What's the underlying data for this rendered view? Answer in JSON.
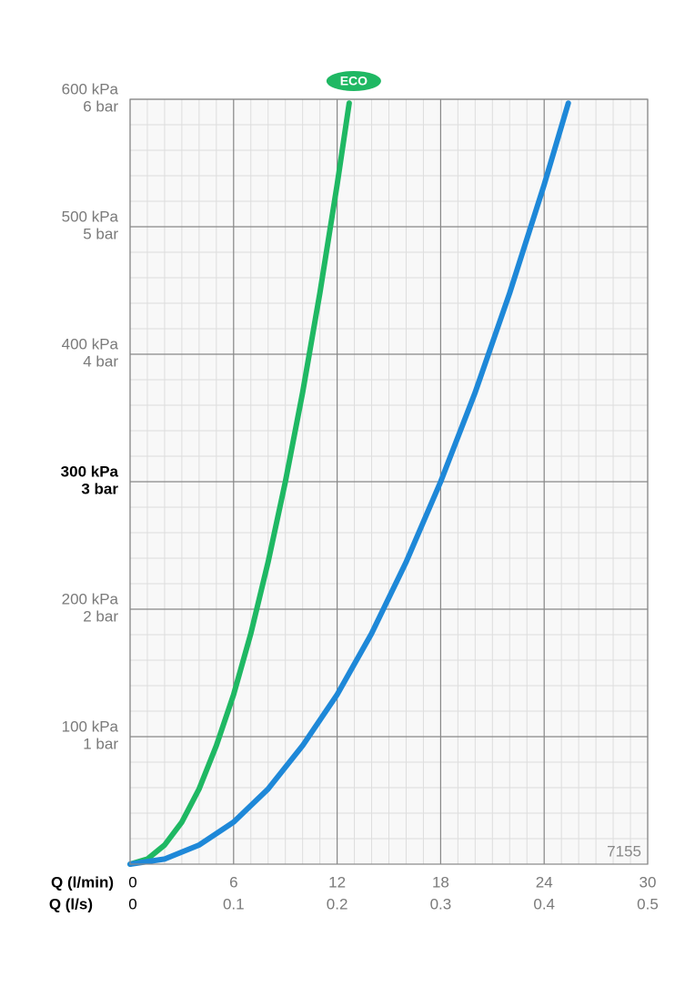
{
  "chart_data": {
    "type": "line",
    "x_label": "Q (l/min)",
    "x2_label": "Q (l/s)",
    "xlim": [
      0,
      30
    ],
    "xticks": [
      0,
      6,
      12,
      18,
      24,
      30
    ],
    "x2lim": [
      0,
      0.5
    ],
    "x2ticks": [
      0,
      0.1,
      0.2,
      0.3,
      0.4,
      0.5
    ],
    "ylim": [
      0,
      600
    ],
    "yticks": [
      {
        "value": 100,
        "label": "100 kPa"
      },
      {
        "value": 200,
        "label": "200 kPa"
      },
      {
        "value": 300,
        "label": "300 kPa"
      },
      {
        "value": 400,
        "label": "400 kPa"
      },
      {
        "value": 500,
        "label": "500 kPa"
      },
      {
        "value": 600,
        "label": "600 kPa"
      }
    ],
    "ytick_labels2": [
      "1 bar",
      "2 bar",
      "3 bar",
      "4 bar",
      "5 bar",
      "6 bar"
    ],
    "highlight_ytick": 300,
    "grid": true,
    "minor_grid": {
      "x": 1,
      "y": 20
    },
    "series": [
      {
        "color": "#1fb863",
        "x": [
          0,
          1,
          2,
          3,
          4,
          5,
          6,
          7,
          8,
          9,
          10,
          11,
          12,
          12.7
        ],
        "values": [
          0,
          4,
          15,
          33,
          59,
          93,
          133,
          181,
          237,
          300,
          370,
          448,
          533,
          597
        ]
      },
      {
        "color": "#1e88d8",
        "x": [
          0,
          2,
          4,
          6,
          8,
          10,
          12,
          14,
          16,
          18,
          20,
          22,
          24,
          25.4
        ],
        "values": [
          0,
          4,
          15,
          33,
          59,
          93,
          133,
          181,
          237,
          300,
          370,
          448,
          533,
          597
        ]
      }
    ],
    "annotations": {
      "eco": "ECO",
      "code": "7155"
    }
  }
}
